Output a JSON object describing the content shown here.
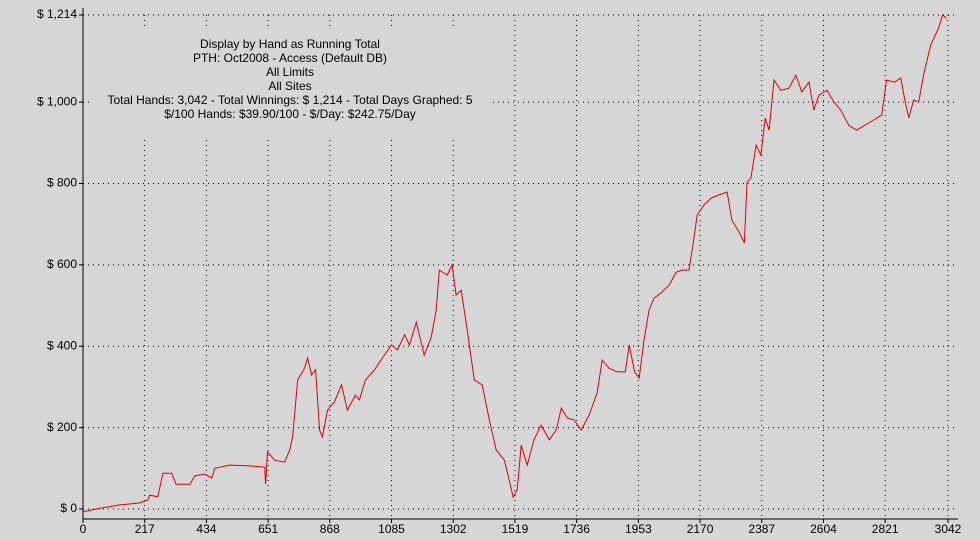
{
  "chart_data": {
    "type": "line",
    "title_lines": [
      "Display by Hand as Running Total",
      "PTH: Oct2008 - Access (Default DB)",
      "All Limits",
      "All Sites",
      "Total Hands: 3,042 - Total Winnings: $ 1,214 - Total Days Graphed: 5",
      "$/100 Hands: $39.90/100 - $/Day: $242.75/Day"
    ],
    "x": [
      0,
      60,
      130,
      200,
      228,
      235,
      263,
      281,
      312,
      327,
      376,
      393,
      428,
      453,
      463,
      516,
      586,
      639,
      642,
      649,
      674,
      709,
      727,
      737,
      755,
      779,
      790,
      804,
      818,
      832,
      842,
      860,
      884,
      909,
      930,
      958,
      972,
      993,
      1025,
      1053,
      1085,
      1106,
      1131,
      1148,
      1172,
      1200,
      1225,
      1242,
      1253,
      1281,
      1298,
      1312,
      1330,
      1351,
      1376,
      1404,
      1429,
      1453,
      1482,
      1499,
      1513,
      1527,
      1541,
      1562,
      1586,
      1611,
      1640,
      1664,
      1682,
      1703,
      1727,
      1752,
      1780,
      1808,
      1826,
      1850,
      1879,
      1907,
      1921,
      1940,
      1956,
      1973,
      1991,
      2008,
      2033,
      2061,
      2086,
      2107,
      2131,
      2145,
      2160,
      2184,
      2209,
      2237,
      2265,
      2282,
      2307,
      2326,
      2335,
      2349,
      2367,
      2384,
      2399,
      2413,
      2430,
      2454,
      2483,
      2507,
      2528,
      2553,
      2570,
      2588,
      2616,
      2641,
      2665,
      2693,
      2721,
      2749,
      2781,
      2809,
      2826,
      2854,
      2876,
      2890,
      2904,
      2921,
      2939,
      2956,
      2981,
      3009,
      3023,
      3037
    ],
    "series": [
      {
        "name": "Running Total",
        "color": "#e00000",
        "values": [
          -7,
          2,
          10,
          15,
          22,
          34,
          30,
          88,
          88,
          61,
          61,
          81,
          86,
          76,
          100,
          108,
          106,
          103,
          61,
          140,
          120,
          115,
          145,
          177,
          317,
          346,
          371,
          329,
          342,
          194,
          177,
          243,
          263,
          305,
          243,
          280,
          268,
          317,
          342,
          371,
          403,
          391,
          428,
          403,
          459,
          378,
          423,
          489,
          587,
          575,
          600,
          526,
          538,
          440,
          317,
          305,
          219,
          145,
          120,
          71,
          29,
          47,
          157,
          108,
          170,
          206,
          170,
          194,
          248,
          224,
          219,
          194,
          231,
          285,
          366,
          346,
          337,
          337,
          403,
          337,
          322,
          415,
          489,
          518,
          531,
          550,
          582,
          587,
          587,
          649,
          722,
          747,
          764,
          772,
          779,
          710,
          681,
          654,
          803,
          813,
          894,
          870,
          961,
          931,
          1054,
          1029,
          1034,
          1066,
          1025,
          1049,
          980,
          1017,
          1029,
          1000,
          980,
          943,
          931,
          943,
          956,
          968,
          1054,
          1049,
          1059,
          1005,
          961,
          1005,
          1000,
          1066,
          1140,
          1182,
          1214,
          1206
        ]
      }
    ],
    "xlim": [
      0,
      3042
    ],
    "xticks": [
      0,
      217,
      434,
      651,
      868,
      1085,
      1302,
      1519,
      1736,
      1953,
      2170,
      2387,
      2604,
      2821,
      3042
    ],
    "ylim": [
      0,
      1214
    ],
    "yticks": [
      {
        "value": 0,
        "label": "$ 0"
      },
      {
        "value": 200,
        "label": "$ 200"
      },
      {
        "value": 400,
        "label": "$ 400"
      },
      {
        "value": 600,
        "label": "$ 600"
      },
      {
        "value": 800,
        "label": "$ 800"
      },
      {
        "value": 1000,
        "label": "$ 1,000"
      },
      {
        "value": 1214,
        "label": "$ 1,214"
      }
    ],
    "grid": true
  }
}
